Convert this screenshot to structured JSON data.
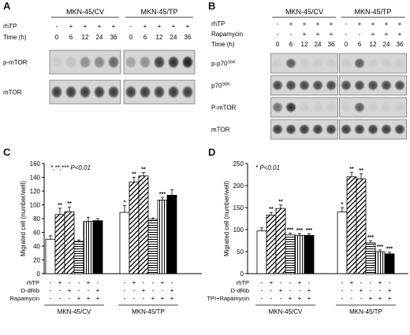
{
  "panels": {
    "A": {
      "label": "A",
      "groups": [
        "MKN-45/CV",
        "MKN-45/TP"
      ],
      "rows": [
        {
          "name": "rhTP",
          "values": [
            "-",
            "+",
            "+",
            "+",
            "+",
            "-",
            "+",
            "+",
            "+",
            "+"
          ]
        },
        {
          "name": "Time (h)",
          "values": [
            "0",
            "6",
            "12",
            "24",
            "36",
            "0",
            "6",
            "12",
            "24",
            "36"
          ]
        }
      ],
      "blots": [
        {
          "name": "p-mTOR",
          "intensity": [
            0.05,
            0.1,
            0.35,
            0.4,
            0.55,
            0.25,
            0.35,
            0.75,
            0.8,
            0.9
          ]
        },
        {
          "name": "mTOR",
          "intensity": [
            0.75,
            0.75,
            0.75,
            0.75,
            0.75,
            0.75,
            0.75,
            0.75,
            0.75,
            0.75
          ]
        }
      ]
    },
    "B": {
      "label": "B",
      "groups": [
        "MKN-45/CV",
        "MKN-45/TP"
      ],
      "rows": [
        {
          "name": "rhTP",
          "values": [
            "-",
            "+",
            "+",
            "+",
            "+",
            "-",
            "+",
            "+",
            "+",
            "+"
          ]
        },
        {
          "name": "Rapamycin",
          "values": [
            "-",
            "-",
            "+",
            "+",
            "+",
            "-",
            "-",
            "+",
            "+",
            "+"
          ]
        },
        {
          "name": "Time (h)",
          "values": [
            "0",
            "6",
            "12",
            "24",
            "36",
            "0",
            "6",
            "12",
            "24",
            "36"
          ]
        }
      ],
      "blots": [
        {
          "name": "p-p70",
          "sup": "S6K",
          "intensity": [
            0.05,
            0.6,
            0.05,
            0.05,
            0.05,
            0.05,
            0.6,
            0.05,
            0.05,
            0.05
          ]
        },
        {
          "name": "p70",
          "sup": "S6K",
          "intensity": [
            0.7,
            0.7,
            0.7,
            0.7,
            0.7,
            0.7,
            0.7,
            0.7,
            0.7,
            0.7
          ]
        },
        {
          "name": "P-mTOR",
          "intensity": [
            0.5,
            0.8,
            0.05,
            0.05,
            0.05,
            0.05,
            0.6,
            0.05,
            0.05,
            0.05
          ]
        },
        {
          "name": "mTOR",
          "intensity": [
            0.75,
            0.75,
            0.75,
            0.75,
            0.75,
            0.75,
            0.75,
            0.75,
            0.75,
            0.75
          ]
        }
      ]
    },
    "C": {
      "label": "C",
      "annotation": "*,**,*** P<0.01",
      "ylabel": "Migrated cell (number/well)",
      "yticks": [
        "0",
        "20",
        "40",
        "60",
        "80",
        "100",
        "120",
        "140",
        "160"
      ],
      "row_labels": [
        "rhTP",
        "D-dRib",
        "Rapamycin"
      ],
      "group_labels": [
        "MKN-45/CV",
        "MKN-45/TP"
      ]
    },
    "D": {
      "label": "D",
      "annotation": "* P<0.01",
      "ylabel": "Migrated cell (number/well)",
      "yticks": [
        "0",
        "50",
        "100",
        "150",
        "200",
        "250"
      ],
      "row_labels": [
        "rhTP",
        "D-dRib",
        "TPI+Rapamycin"
      ],
      "group_labels": [
        "MKN-45/CV",
        "MKN-45/TP"
      ]
    }
  },
  "chart_data": [
    {
      "type": "bar",
      "panel": "C",
      "ylabel": "Migrated cell (number/well)",
      "ylim": [
        0,
        160
      ],
      "groups": [
        "MKN-45/CV",
        "MKN-45/TP"
      ],
      "conditions": [
        {
          "rhTP": "-",
          "D-dRib": "-",
          "Rapamycin": "-",
          "pattern": "white"
        },
        {
          "rhTP": "+",
          "D-dRib": "-",
          "Rapamycin": "-",
          "pattern": "diagonal"
        },
        {
          "rhTP": "-",
          "D-dRib": "+",
          "Rapamycin": "-",
          "pattern": "diagonal"
        },
        {
          "rhTP": "-",
          "D-dRib": "-",
          "Rapamycin": "+",
          "pattern": "horizontal"
        },
        {
          "rhTP": "+",
          "D-dRib": "-",
          "Rapamycin": "+",
          "pattern": "vertical"
        },
        {
          "rhTP": "-",
          "D-dRib": "+",
          "Rapamycin": "+",
          "pattern": "black"
        }
      ],
      "values": [
        [
          50,
          86,
          90,
          47,
          76,
          77
        ],
        [
          89,
          133,
          142,
          79,
          107,
          114
        ]
      ],
      "errors": [
        [
          5,
          9,
          7,
          2,
          6,
          3
        ],
        [
          10,
          7,
          5,
          2,
          4,
          8
        ]
      ],
      "significance": [
        [
          "",
          "**",
          "**",
          "",
          "",
          ""
        ],
        [
          "*",
          "**",
          "**",
          "",
          "***",
          ""
        ]
      ]
    },
    {
      "type": "bar",
      "panel": "D",
      "ylabel": "Migrated cell (number/well)",
      "ylim": [
        0,
        250
      ],
      "groups": [
        "MKN-45/CV",
        "MKN-45/TP"
      ],
      "conditions": [
        {
          "rhTP": "-",
          "D-dRib": "-",
          "TPI+Rapamycin": "-",
          "pattern": "white"
        },
        {
          "rhTP": "+",
          "D-dRib": "-",
          "TPI+Rapamycin": "-",
          "pattern": "diagonal"
        },
        {
          "rhTP": "-",
          "D-dRib": "+",
          "TPI+Rapamycin": "-",
          "pattern": "diagonal"
        },
        {
          "rhTP": "-",
          "D-dRib": "-",
          "TPI+Rapamycin": "+",
          "pattern": "horizontal"
        },
        {
          "rhTP": "+",
          "D-dRib": "-",
          "TPI+Rapamycin": "+",
          "pattern": "vertical"
        },
        {
          "rhTP": "-",
          "D-dRib": "+",
          "TPI+Rapamycin": "+",
          "pattern": "black"
        }
      ],
      "values": [
        [
          97,
          133,
          148,
          88,
          87,
          87
        ],
        [
          140,
          220,
          215,
          70,
          50,
          45
        ]
      ],
      "errors": [
        [
          7,
          6,
          8,
          4,
          4,
          4
        ],
        [
          10,
          10,
          12,
          5,
          4,
          4
        ]
      ],
      "significance": [
        [
          "",
          "**",
          "**",
          "***",
          "***",
          "***"
        ],
        [
          "*",
          "**",
          "**",
          "***",
          "***",
          "***"
        ]
      ]
    }
  ]
}
